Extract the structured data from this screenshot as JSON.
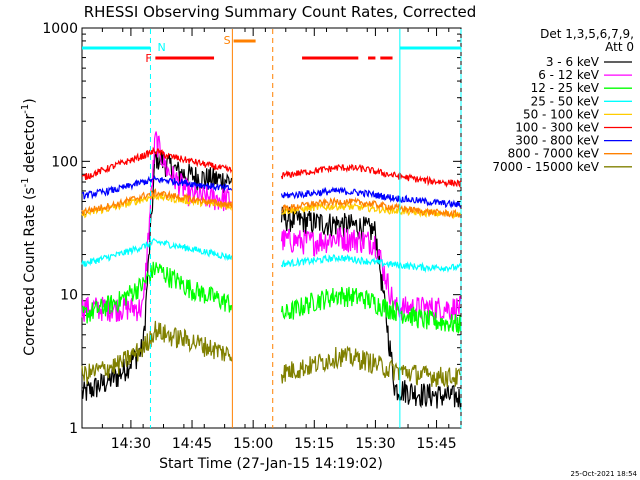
{
  "chart_data": {
    "type": "line",
    "title": "RHESSI Observing Summary Count Rates, Corrected",
    "xlabel": "Start Time (27-Jan-15 14:19:02)",
    "ylabel": "Corrected Count Rate (s⁻¹ detector⁻¹)",
    "ylabel_main": "Corrected Count Rate (s",
    "ylabel_sup1": "-1",
    "ylabel_mid": " detector",
    "ylabel_sup2": "-1",
    "ylabel_end": ")",
    "y_scale": "log",
    "ylim": [
      1,
      1000
    ],
    "xlim_minutes": [
      14.3,
      15.85
    ],
    "x_ticks": [
      {
        "t": 14.5,
        "label": "14:30"
      },
      {
        "t": 14.75,
        "label": "14:45"
      },
      {
        "t": 15.0,
        "label": "15:00"
      },
      {
        "t": 15.25,
        "label": "15:15"
      },
      {
        "t": 15.5,
        "label": "15:30"
      },
      {
        "t": 15.75,
        "label": "15:45"
      }
    ],
    "y_ticks": [
      {
        "v": 1,
        "label": "1"
      },
      {
        "v": 10,
        "label": "10"
      },
      {
        "v": 100,
        "label": "100"
      },
      {
        "v": 1000,
        "label": "1000"
      }
    ],
    "legend_title_1": "Det 1,3,5,6,7,9,",
    "legend_title_2": "Att 0",
    "legend_placement": "right",
    "gaps": [
      [
        14.915,
        15.115
      ]
    ],
    "series": [
      {
        "name": "3 - 6 keV",
        "color": "#000000",
        "values": [
          [
            14.3,
            1.8
          ],
          [
            14.45,
            2.5
          ],
          [
            14.55,
            4
          ],
          [
            14.6,
            110
          ],
          [
            14.65,
            95
          ],
          [
            14.7,
            82
          ],
          [
            14.8,
            75
          ],
          [
            14.915,
            72
          ],
          [
            15.115,
            38
          ],
          [
            15.25,
            35
          ],
          [
            15.35,
            34
          ],
          [
            15.42,
            33
          ],
          [
            15.5,
            30
          ],
          [
            15.58,
            2
          ],
          [
            15.7,
            1.8
          ],
          [
            15.85,
            1.7
          ]
        ]
      },
      {
        "name": "6 - 12 keV",
        "color": "#ff00ff",
        "values": [
          [
            14.3,
            8
          ],
          [
            14.45,
            8
          ],
          [
            14.55,
            8
          ],
          [
            14.6,
            150
          ],
          [
            14.65,
            85
          ],
          [
            14.75,
            55
          ],
          [
            14.915,
            52
          ],
          [
            15.115,
            26
          ],
          [
            15.25,
            25
          ],
          [
            15.35,
            27
          ],
          [
            15.42,
            26
          ],
          [
            15.5,
            25
          ],
          [
            15.58,
            8
          ],
          [
            15.7,
            8
          ],
          [
            15.85,
            8
          ]
        ]
      },
      {
        "name": "12 - 25 keV",
        "color": "#00ff00",
        "values": [
          [
            14.3,
            7
          ],
          [
            14.45,
            9
          ],
          [
            14.55,
            12
          ],
          [
            14.6,
            16
          ],
          [
            14.65,
            14
          ],
          [
            14.75,
            11
          ],
          [
            14.915,
            8.5
          ],
          [
            15.115,
            7
          ],
          [
            15.25,
            9
          ],
          [
            15.35,
            10
          ],
          [
            15.45,
            9.5
          ],
          [
            15.55,
            8
          ],
          [
            15.7,
            6.5
          ],
          [
            15.85,
            6
          ]
        ]
      },
      {
        "name": "25 - 50 keV",
        "color": "#00ffff",
        "values": [
          [
            14.3,
            17
          ],
          [
            14.45,
            20
          ],
          [
            14.55,
            23
          ],
          [
            14.6,
            25
          ],
          [
            14.65,
            24
          ],
          [
            14.75,
            22
          ],
          [
            14.915,
            19
          ],
          [
            15.115,
            17
          ],
          [
            15.25,
            18
          ],
          [
            15.35,
            19
          ],
          [
            15.45,
            18
          ],
          [
            15.55,
            17
          ],
          [
            15.7,
            16
          ],
          [
            15.85,
            16
          ]
        ]
      },
      {
        "name": "50 - 100 keV",
        "color": "#ffcc00",
        "values": [
          [
            14.3,
            40
          ],
          [
            14.45,
            46
          ],
          [
            14.55,
            52
          ],
          [
            14.6,
            55
          ],
          [
            14.65,
            53
          ],
          [
            14.75,
            50
          ],
          [
            14.915,
            46
          ],
          [
            15.115,
            42
          ],
          [
            15.25,
            45
          ],
          [
            15.35,
            46
          ],
          [
            15.45,
            45
          ],
          [
            15.55,
            43
          ],
          [
            15.7,
            41
          ],
          [
            15.85,
            40
          ]
        ]
      },
      {
        "name": "100 - 300 keV",
        "color": "#ff0000",
        "values": [
          [
            14.3,
            75
          ],
          [
            14.45,
            95
          ],
          [
            14.55,
            110
          ],
          [
            14.6,
            120
          ],
          [
            14.65,
            110
          ],
          [
            14.75,
            100
          ],
          [
            14.915,
            85
          ],
          [
            15.115,
            78
          ],
          [
            15.25,
            85
          ],
          [
            15.35,
            90
          ],
          [
            15.45,
            88
          ],
          [
            15.55,
            80
          ],
          [
            15.7,
            72
          ],
          [
            15.85,
            68
          ]
        ]
      },
      {
        "name": "300 - 800 keV",
        "color": "#0000ff",
        "values": [
          [
            14.3,
            55
          ],
          [
            14.45,
            62
          ],
          [
            14.55,
            70
          ],
          [
            14.6,
            73
          ],
          [
            14.65,
            72
          ],
          [
            14.75,
            68
          ],
          [
            14.915,
            62
          ],
          [
            15.115,
            55
          ],
          [
            15.25,
            58
          ],
          [
            15.35,
            60
          ],
          [
            15.45,
            58
          ],
          [
            15.55,
            54
          ],
          [
            15.7,
            50
          ],
          [
            15.85,
            47
          ]
        ]
      },
      {
        "name": "800 - 7000 keV",
        "color": "#ff8000",
        "values": [
          [
            14.3,
            42
          ],
          [
            14.45,
            48
          ],
          [
            14.55,
            55
          ],
          [
            14.6,
            58
          ],
          [
            14.65,
            56
          ],
          [
            14.75,
            52
          ],
          [
            14.915,
            47
          ],
          [
            15.115,
            44
          ],
          [
            15.25,
            48
          ],
          [
            15.35,
            50
          ],
          [
            15.45,
            49
          ],
          [
            15.55,
            46
          ],
          [
            15.7,
            42
          ],
          [
            15.85,
            40
          ]
        ]
      },
      {
        "name": "7000 - 15000 keV",
        "color": "#808000",
        "values": [
          [
            14.3,
            2.5
          ],
          [
            14.45,
            3
          ],
          [
            14.55,
            4
          ],
          [
            14.6,
            5.5
          ],
          [
            14.65,
            5
          ],
          [
            14.75,
            4.5
          ],
          [
            14.915,
            3.5
          ],
          [
            15.115,
            2.6
          ],
          [
            15.25,
            3
          ],
          [
            15.35,
            3.5
          ],
          [
            15.45,
            3.3
          ],
          [
            15.55,
            2.8
          ],
          [
            15.7,
            2.5
          ],
          [
            15.85,
            2.4
          ]
        ]
      }
    ],
    "markers": {
      "night_bars": [
        [
          14.3,
          14.58
        ],
        [
          15.6,
          15.85
        ]
      ],
      "night_label": "N",
      "saa_bar": [
        14.92,
        15.01
      ],
      "saa_label": "S",
      "flare_segments": [
        [
          14.6,
          14.84
        ],
        [
          15.2,
          15.43
        ],
        [
          15.47,
          15.5
        ],
        [
          15.52,
          15.57
        ]
      ],
      "flare_label": "F",
      "vlines": [
        {
          "t": 14.58,
          "color": "#00ffff",
          "dash": true
        },
        {
          "t": 14.915,
          "color": "#ff8000",
          "dash": false
        },
        {
          "t": 15.08,
          "color": "#ff8000",
          "dash": true
        },
        {
          "t": 15.6,
          "color": "#00ffff",
          "dash": false
        },
        {
          "t": 15.85,
          "color": "#00ffff",
          "dash": true
        }
      ]
    },
    "footer_timestamp": "25-Oct-2021 18:54"
  }
}
